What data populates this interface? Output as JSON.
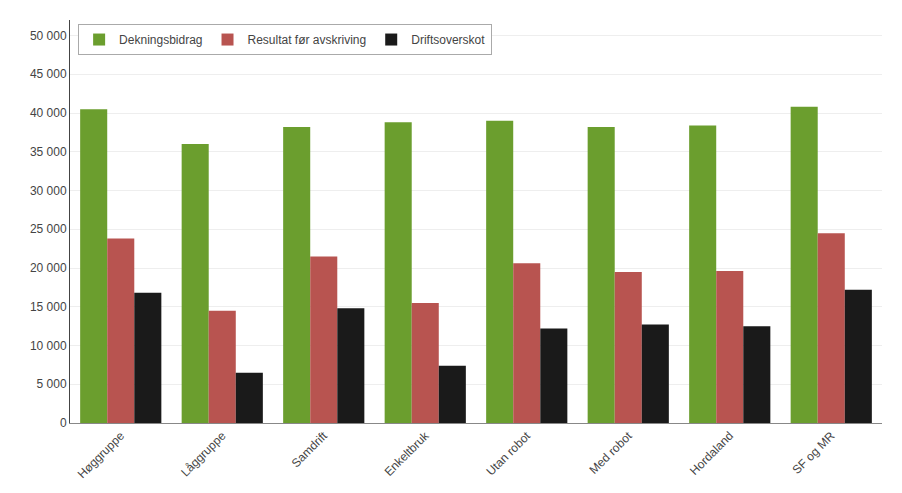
{
  "chart_data": {
    "type": "bar",
    "categories": [
      "Høggruppe",
      "Låggruppe",
      "Samdrift",
      "Enkeltbruk",
      "Utan robot",
      "Med robot",
      "Hordaland",
      "SF og MR"
    ],
    "series": [
      {
        "name": "Dekningsbidrag",
        "color": "#6b9e2e",
        "values": [
          40500,
          36000,
          38200,
          38800,
          39000,
          38200,
          38400,
          40800
        ]
      },
      {
        "name": "Resultat før avskriving",
        "color": "#b85450",
        "values": [
          23800,
          14500,
          21500,
          15500,
          20600,
          19500,
          19600,
          24500
        ]
      },
      {
        "name": "Driftsoverskot",
        "color": "#1a1a1a",
        "values": [
          16800,
          6500,
          14800,
          7400,
          12200,
          12700,
          12500,
          17200
        ]
      }
    ],
    "ylim": [
      0,
      52000
    ],
    "yticks": [
      0,
      {
        "value": 5000,
        "label": "5 000"
      },
      {
        "value": 10000,
        "label": "10 000"
      },
      {
        "value": 15000,
        "label": "15 000"
      },
      {
        "value": 20000,
        "label": "20 000"
      },
      {
        "value": 25000,
        "label": "25 000"
      },
      {
        "value": 30000,
        "label": "30 000"
      },
      {
        "value": 35000,
        "label": "35 000"
      },
      {
        "value": 40000,
        "label": "40 000"
      },
      {
        "value": 45000,
        "label": "45 000"
      },
      {
        "value": 50000,
        "label": "50 000"
      }
    ],
    "grid": true,
    "legend": "upper left"
  }
}
